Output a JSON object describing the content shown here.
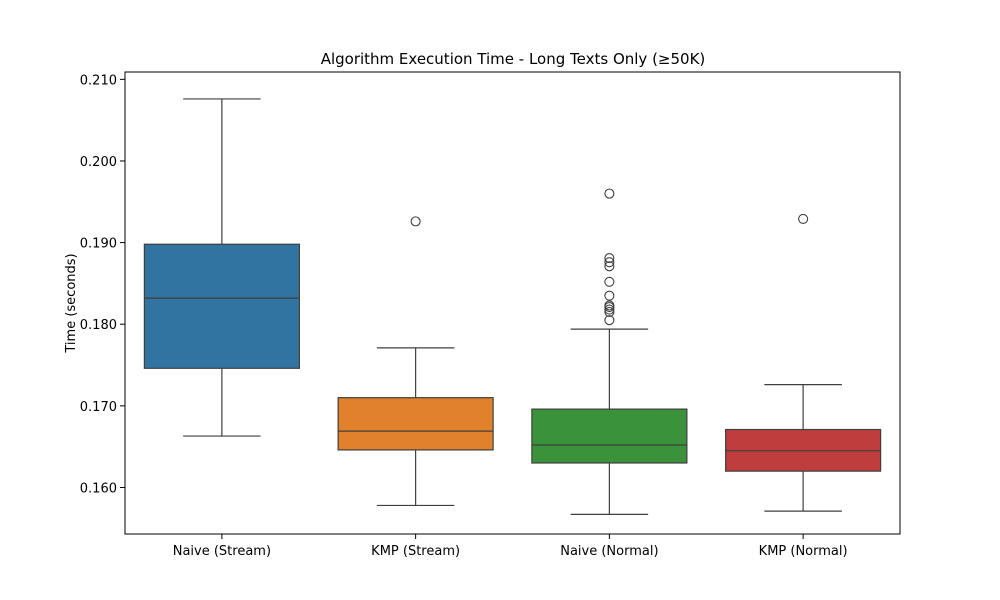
{
  "chart_data": {
    "type": "box",
    "title": "Algorithm Execution Time - Long Texts Only (≥50K)",
    "xlabel": "",
    "ylabel": "Time (seconds)",
    "ylim": [
      0.1543,
      0.2109
    ],
    "yticks": [
      "0.160",
      "0.170",
      "0.180",
      "0.190",
      "0.200",
      "0.210"
    ],
    "grid": false,
    "categories": [
      "Naive (Stream)",
      "KMP (Stream)",
      "Naive (Normal)",
      "KMP (Normal)"
    ],
    "colors": [
      "#3274a1",
      "#e1812c",
      "#3a923a",
      "#c03d3e"
    ],
    "series": [
      {
        "whisker_low": 0.1663,
        "q1": 0.1746,
        "median": 0.1832,
        "q3": 0.1898,
        "whisker_high": 0.2076,
        "outliers": []
      },
      {
        "whisker_low": 0.1578,
        "q1": 0.1646,
        "median": 0.1669,
        "q3": 0.171,
        "whisker_high": 0.1771,
        "outliers": [
          0.1926
        ]
      },
      {
        "whisker_low": 0.1567,
        "q1": 0.163,
        "median": 0.1652,
        "q3": 0.1696,
        "whisker_high": 0.1794,
        "outliers": [
          0.196,
          0.1881,
          0.1876,
          0.1871,
          0.1852,
          0.1835,
          0.1823,
          0.1821,
          0.1818,
          0.1815,
          0.1805
        ]
      },
      {
        "whisker_low": 0.1571,
        "q1": 0.162,
        "median": 0.1645,
        "q3": 0.1671,
        "whisker_high": 0.1726,
        "outliers": [
          0.1929
        ]
      }
    ]
  }
}
